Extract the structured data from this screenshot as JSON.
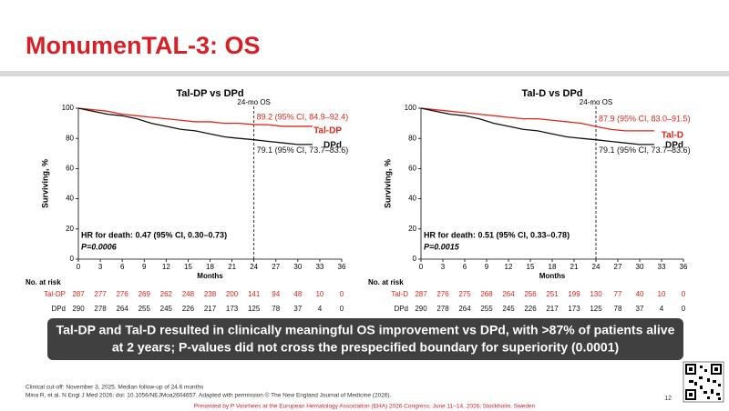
{
  "slide": {
    "title": "MonumenTAL-3: OS",
    "banner": [
      "Tal-DP and Tal-D resulted in clinically meaningful OS improvement vs DPd, with >87% of patients alive",
      "at 2 years; P-values did not cross the prespecified boundary for superiority (0.0001)"
    ],
    "footnotes": [
      "Clinical cut-off: November 3, 2025. Median follow-up of 24.6 months",
      "Mina R, et al. N Engl J Med 2026; doi: 10.1056/NEJMoa2604657. Adapted with permission © The New England Journal of Medicine (2026)."
    ],
    "presenter": "Presented by P Voorhees at the European Hematology Association (EHA) 2026 Congress; June 11–14, 2026; Stockholm, Sweden",
    "page": "12"
  },
  "chart_data": [
    {
      "type": "line",
      "title": "Tal-DP vs DPd",
      "xlabel": "Months",
      "ylabel": "Surviving, %",
      "xlim": [
        0,
        36
      ],
      "ylim": [
        0,
        100
      ],
      "xticks": [
        0,
        3,
        6,
        9,
        12,
        15,
        18,
        21,
        24,
        27,
        30,
        33,
        36
      ],
      "yticks": [
        0,
        20,
        40,
        60,
        80,
        100
      ],
      "x": [
        0,
        2,
        4,
        6,
        8,
        10,
        12,
        14,
        16,
        18,
        20,
        22,
        24,
        26,
        28,
        30,
        32
      ],
      "series": [
        {
          "name": "Tal-DP",
          "color": "#e0261c",
          "values": [
            100,
            99,
            98,
            96,
            95,
            94,
            93,
            92,
            91,
            91,
            90,
            90,
            89.2,
            89,
            88,
            88,
            88
          ]
        },
        {
          "name": "DPd",
          "color": "#111111",
          "values": [
            100,
            98,
            96,
            95,
            93,
            90,
            88,
            86,
            85,
            83,
            81,
            80,
            79.1,
            78,
            77,
            76,
            76
          ]
        }
      ],
      "reference_x": 24,
      "reference_label": "24-mo OS",
      "ci_labels": [
        "89.2 (95% CI, 84.9–92.4)",
        "79.1 (95% CI, 73.7–83.6)"
      ],
      "hr_text": "HR for death: 0.47 (95% CI, 0.30–0.73)",
      "p_text": "P=0.0006",
      "at_risk_title": "No. at risk",
      "at_risk": [
        [
          287,
          277,
          276,
          269,
          262,
          248,
          238,
          200,
          141,
          94,
          48,
          10,
          0
        ],
        [
          290,
          278,
          264,
          255,
          245,
          226,
          217,
          173,
          125,
          78,
          37,
          4,
          0
        ]
      ]
    },
    {
      "type": "line",
      "title": "Tal-D vs DPd",
      "xlabel": "Months",
      "ylabel": "Surviving, %",
      "xlim": [
        0,
        36
      ],
      "ylim": [
        0,
        100
      ],
      "xticks": [
        0,
        3,
        6,
        9,
        12,
        15,
        18,
        21,
        24,
        27,
        30,
        33,
        36
      ],
      "yticks": [
        0,
        20,
        40,
        60,
        80,
        100
      ],
      "x": [
        0,
        2,
        4,
        6,
        8,
        10,
        12,
        14,
        16,
        18,
        20,
        22,
        24,
        26,
        28,
        30,
        32
      ],
      "series": [
        {
          "name": "Tal-D",
          "color": "#e0261c",
          "values": [
            100,
            99,
            98,
            97,
            96,
            95,
            94,
            93,
            93,
            92,
            91,
            90,
            87.9,
            86,
            85,
            85,
            85
          ]
        },
        {
          "name": "DPd",
          "color": "#111111",
          "values": [
            100,
            98,
            96,
            95,
            93,
            90,
            88,
            86,
            85,
            83,
            81,
            80,
            79.1,
            78,
            77,
            76,
            76
          ]
        }
      ],
      "reference_x": 24,
      "reference_label": "24-mo OS",
      "ci_labels": [
        "87.9 (95% CI, 83.0–91.5)",
        "79.1 (95% CI, 73.7–83.6)"
      ],
      "hr_text": "HR for death: 0.51 (95% CI, 0.33–0.78)",
      "p_text": "P=0.0015",
      "at_risk_title": "No. at risk",
      "at_risk": [
        [
          287,
          276,
          275,
          268,
          264,
          256,
          251,
          199,
          130,
          77,
          40,
          10,
          0
        ],
        [
          290,
          278,
          264,
          255,
          245,
          226,
          217,
          173,
          125,
          78,
          37,
          4,
          0
        ]
      ]
    }
  ]
}
